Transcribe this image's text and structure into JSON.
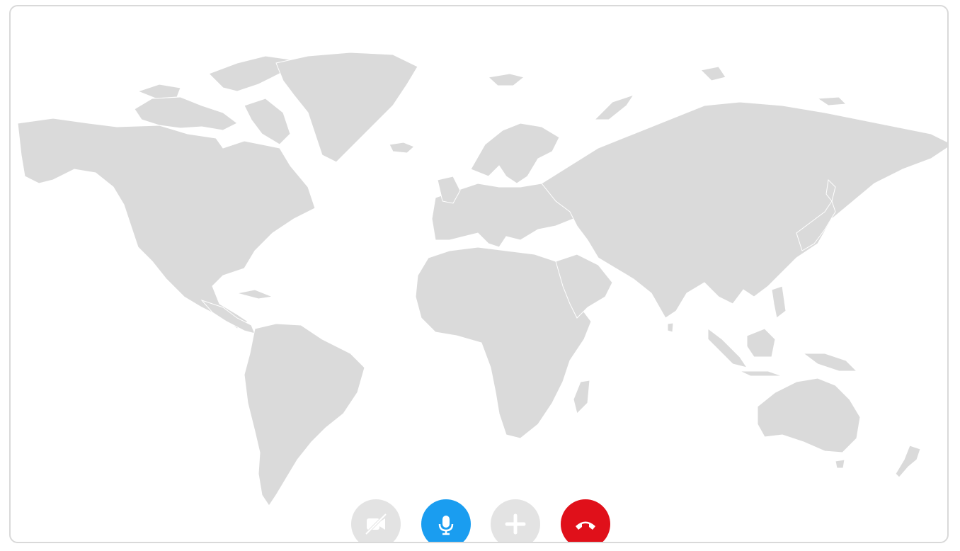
{
  "call_controls": {
    "items": [
      {
        "id": "video",
        "icon": "video-off-icon",
        "state": "disabled",
        "color": "#e3e3e3"
      },
      {
        "id": "mic",
        "icon": "microphone-icon",
        "state": "active",
        "color": "#1a9df0"
      },
      {
        "id": "add",
        "icon": "plus-icon",
        "state": "disabled",
        "color": "#e3e3e3"
      },
      {
        "id": "hangup",
        "icon": "phone-hangup-icon",
        "state": "active",
        "color": "#e0101a"
      }
    ]
  },
  "map": {
    "style": "world-map",
    "land_color": "#dadada",
    "border_color": "#ffffff"
  }
}
